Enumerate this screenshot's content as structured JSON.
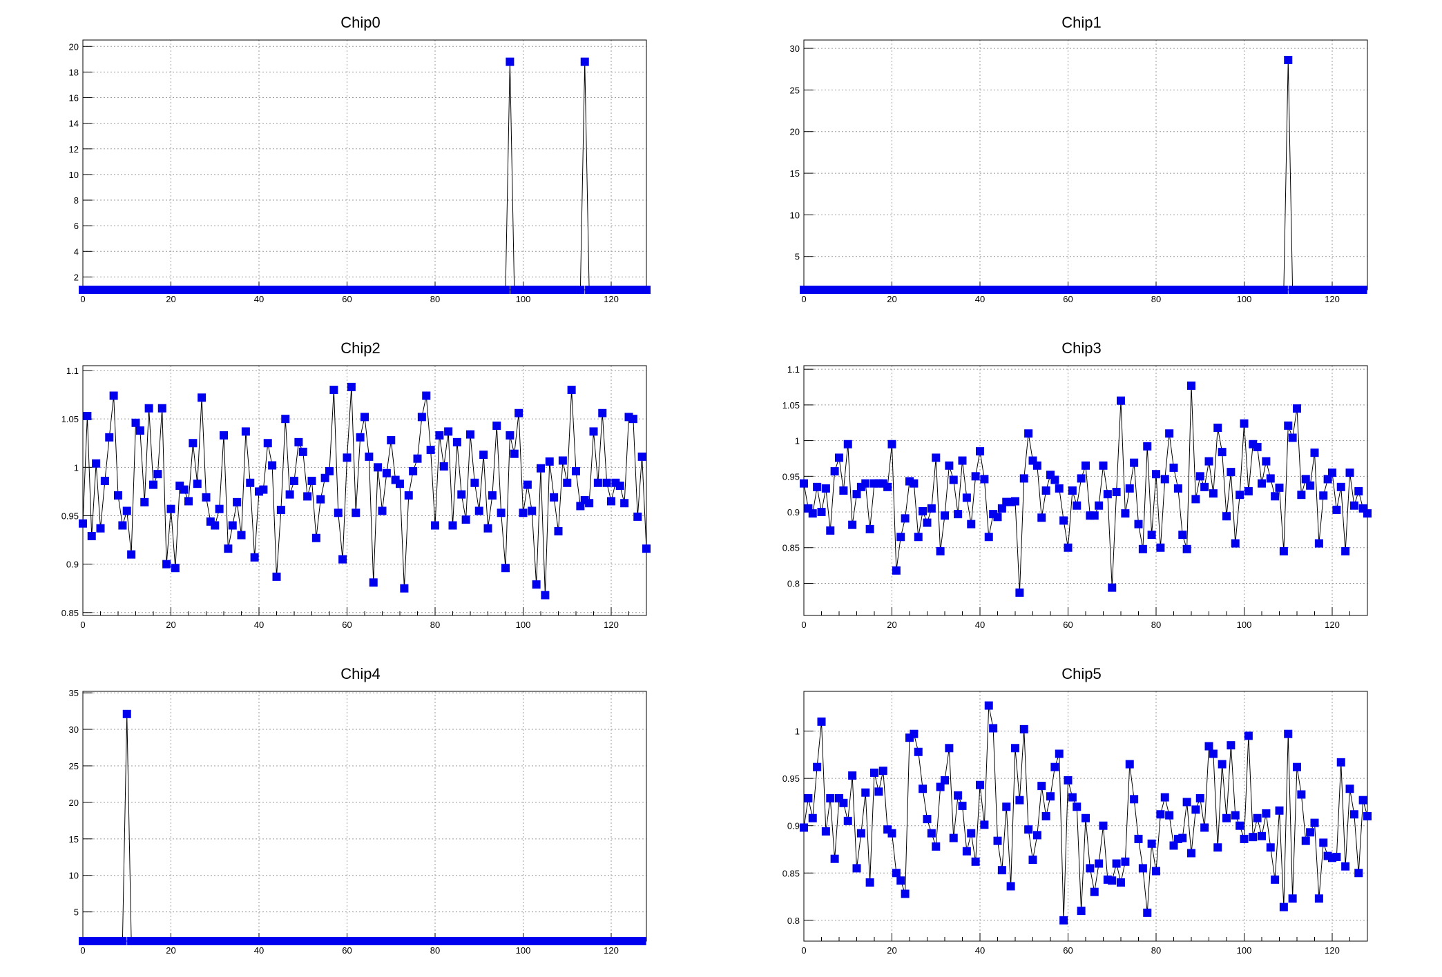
{
  "chart_data": [
    {
      "type": "line",
      "title": "Chip0",
      "xlim": [
        0,
        128
      ],
      "ylim": [
        1,
        20.5
      ],
      "x_ticks": [
        0,
        20,
        40,
        60,
        80,
        100,
        120
      ],
      "y_ticks": [
        2,
        4,
        6,
        8,
        10,
        12,
        14,
        16,
        18,
        20
      ],
      "grid": true,
      "marker": "square",
      "series": [
        {
          "values": [
            1,
            1,
            1,
            1,
            1,
            1,
            1,
            1,
            1,
            1,
            1,
            1,
            1,
            1,
            1,
            1,
            1,
            1,
            1,
            1,
            1,
            1,
            1,
            1,
            1,
            1,
            1,
            1,
            1,
            1,
            1,
            1,
            1,
            1,
            1,
            1,
            1,
            1,
            1,
            1,
            1,
            1,
            1,
            1,
            1,
            1,
            1,
            1,
            1,
            1,
            1,
            1,
            1,
            1,
            1,
            1,
            1,
            1,
            1,
            1,
            1,
            1,
            1,
            1,
            1,
            1,
            1,
            1,
            1,
            1,
            1,
            1,
            1,
            1,
            1,
            1,
            1,
            1,
            1,
            1,
            1,
            1,
            1,
            1,
            1,
            1,
            1,
            1,
            1,
            1,
            1,
            1,
            1,
            1,
            1,
            1,
            1,
            18.8,
            1,
            1,
            1,
            1,
            1,
            1,
            1,
            1,
            1,
            1,
            1,
            1,
            1,
            1,
            1,
            1,
            18.8,
            1,
            1,
            1,
            1,
            1,
            1,
            1,
            1,
            1,
            1,
            1,
            1,
            1,
            1
          ]
        }
      ]
    },
    {
      "type": "line",
      "title": "Chip1",
      "xlim": [
        0,
        128
      ],
      "ylim": [
        1,
        31
      ],
      "x_ticks": [
        0,
        20,
        40,
        60,
        80,
        100,
        120
      ],
      "y_ticks": [
        5,
        10,
        15,
        20,
        25,
        30
      ],
      "grid": true,
      "marker": "square",
      "series": [
        {
          "values": [
            1,
            1,
            1,
            1,
            1,
            1,
            1,
            1,
            1,
            1,
            1,
            1,
            1,
            1,
            1,
            1,
            1,
            1,
            1,
            1,
            1,
            1,
            1,
            1,
            1,
            1,
            1,
            1,
            1,
            1,
            1,
            1,
            1,
            1,
            1,
            1,
            1,
            1,
            1,
            1,
            1,
            1,
            1,
            1,
            1,
            1,
            1,
            1,
            1,
            1,
            1,
            1,
            1,
            1,
            1,
            1,
            1,
            1,
            1,
            1,
            1,
            1,
            1,
            1,
            1,
            1,
            1,
            1,
            1,
            1,
            1,
            1,
            1,
            1,
            1,
            1,
            1,
            1,
            1,
            1,
            1,
            1,
            1,
            1,
            1,
            1,
            1,
            1,
            1,
            1,
            1,
            1,
            1,
            1,
            1,
            1,
            1,
            1,
            1,
            1,
            1,
            1,
            1,
            1,
            1,
            1,
            1,
            1,
            1,
            1,
            28.6,
            1,
            1,
            1,
            1,
            1,
            1,
            1,
            1,
            1,
            1,
            1,
            1,
            1,
            1,
            1,
            1,
            1
          ]
        }
      ]
    },
    {
      "type": "line",
      "title": "Chip2",
      "xlim": [
        0,
        128
      ],
      "ylim": [
        0.847,
        1.105
      ],
      "x_ticks": [
        0,
        20,
        40,
        60,
        80,
        100,
        120
      ],
      "y_ticks": [
        0.85,
        0.9,
        0.95,
        1,
        1.05,
        1.1
      ],
      "grid": true,
      "marker": "square",
      "series": [
        {
          "values": [
            0.942,
            1.053,
            0.929,
            1.004,
            0.937,
            0.986,
            1.031,
            1.074,
            0.971,
            0.94,
            0.955,
            0.91,
            1.046,
            1.038,
            0.964,
            1.061,
            0.982,
            0.993,
            1.061,
            0.9,
            0.957,
            0.896,
            0.981,
            0.977,
            0.965,
            1.025,
            0.983,
            1.072,
            0.969,
            0.944,
            0.94,
            0.957,
            1.033,
            0.916,
            0.94,
            0.964,
            0.93,
            1.037,
            0.984,
            0.907,
            0.975,
            0.977,
            1.025,
            1.002,
            0.887,
            0.956,
            1.05,
            0.972,
            0.986,
            1.026,
            1.016,
            0.97,
            0.986,
            0.927,
            0.967,
            0.989,
            0.996,
            1.08,
            0.953,
            0.905,
            1.01,
            1.083,
            0.953,
            1.031,
            1.052,
            1.011,
            0.881,
            1,
            0.955,
            0.994,
            1.028,
            0.987,
            0.983,
            0.875,
            0.971,
            0.996,
            1.009,
            1.052,
            1.074,
            1.018,
            0.94,
            1.033,
            1.001,
            1.037,
            0.94,
            1.026,
            0.972,
            0.946,
            1.034,
            0.984,
            0.955,
            1.013,
            0.937,
            0.971,
            1.043,
            0.953,
            0.896,
            1.033,
            1.014,
            1.056,
            0.953,
            0.982,
            0.955,
            0.879,
            0.999,
            0.868,
            1.006,
            0.969,
            0.934,
            1.007,
            0.984,
            1.08,
            0.996,
            0.96,
            0.966,
            0.963,
            1.037,
            0.984,
            1.056,
            0.984,
            0.965,
            0.984,
            0.981,
            0.963,
            1.052,
            1.05,
            0.949,
            1.011,
            0.916
          ]
        }
      ]
    },
    {
      "type": "line",
      "title": "Chip3",
      "xlim": [
        0,
        128
      ],
      "ylim": [
        0.755,
        1.105
      ],
      "x_ticks": [
        0,
        20,
        40,
        60,
        80,
        100,
        120
      ],
      "y_ticks": [
        0.8,
        0.85,
        0.9,
        0.95,
        1,
        1.05,
        1.1
      ],
      "grid": true,
      "marker": "square",
      "series": [
        {
          "values": [
            0.94,
            0.905,
            0.898,
            0.935,
            0.9,
            0.933,
            0.874,
            0.957,
            0.976,
            0.93,
            0.995,
            0.882,
            0.925,
            0.935,
            0.94,
            0.876,
            0.94,
            0.94,
            0.94,
            0.935,
            0.995,
            0.818,
            0.865,
            0.891,
            0.943,
            0.94,
            0.865,
            0.901,
            0.885,
            0.905,
            0.976,
            0.845,
            0.895,
            0.965,
            0.945,
            0.897,
            0.972,
            0.92,
            0.883,
            0.95,
            0.985,
            0.946,
            0.865,
            0.897,
            0.893,
            0.905,
            0.914,
            0.914,
            0.915,
            0.787,
            0.947,
            1.01,
            0.972,
            0.965,
            0.892,
            0.93,
            0.952,
            0.945,
            0.933,
            0.888,
            0.85,
            0.93,
            0.909,
            0.947,
            0.965,
            0.895,
            0.895,
            0.909,
            0.965,
            0.925,
            0.794,
            0.928,
            1.056,
            0.898,
            0.933,
            0.969,
            0.883,
            0.848,
            0.992,
            0.868,
            0.953,
            0.85,
            0.946,
            1.01,
            0.962,
            0.933,
            0.868,
            0.848,
            1.077,
            0.918,
            0.95,
            0.935,
            0.971,
            0.926,
            1.018,
            0.984,
            0.894,
            0.956,
            0.856,
            0.924,
            1.024,
            0.929,
            0.995,
            0.991,
            0.94,
            0.971,
            0.947,
            0.922,
            0.934,
            0.845,
            1.021,
            1.004,
            1.045,
            0.924,
            0.946,
            0.937,
            0.983,
            0.856,
            0.923,
            0.946,
            0.955,
            0.903,
            0.935,
            0.845,
            0.955,
            0.909,
            0.929,
            0.905,
            0.898
          ]
        }
      ]
    },
    {
      "type": "line",
      "title": "Chip4",
      "xlim": [
        0,
        128
      ],
      "ylim": [
        1,
        35.2
      ],
      "x_ticks": [
        0,
        20,
        40,
        60,
        80,
        100,
        120
      ],
      "y_ticks": [
        5,
        10,
        15,
        20,
        25,
        30,
        35
      ],
      "grid": true,
      "marker": "square",
      "series": [
        {
          "values": [
            1,
            1,
            1,
            1,
            1,
            1,
            1,
            1,
            1,
            1,
            32.1,
            1,
            1,
            1,
            1,
            1,
            1,
            1,
            1,
            1,
            1,
            1,
            1,
            1,
            1,
            1,
            1,
            1,
            1,
            1,
            1,
            1,
            1,
            1,
            1,
            1,
            1,
            1,
            1,
            1,
            1,
            1,
            1,
            1,
            1,
            1,
            1,
            1,
            1,
            1,
            1,
            1,
            1,
            1,
            1,
            1,
            1,
            1,
            1,
            1,
            1,
            1,
            1,
            1,
            1,
            1,
            1,
            1,
            1,
            1,
            1,
            1,
            1,
            1,
            1,
            1,
            1,
            1,
            1,
            1,
            1,
            1,
            1,
            1,
            1,
            1,
            1,
            1,
            1,
            1,
            1,
            1,
            1,
            1,
            1,
            1,
            1,
            1,
            1,
            1,
            1,
            1,
            1,
            1,
            1,
            1,
            1,
            1,
            1,
            1,
            1,
            1,
            1,
            1,
            1,
            1,
            1,
            1,
            1,
            1,
            1,
            1,
            1,
            1,
            1,
            1,
            1,
            1
          ]
        }
      ]
    },
    {
      "type": "line",
      "title": "Chip5",
      "xlim": [
        0,
        128
      ],
      "ylim": [
        0.778,
        1.042
      ],
      "x_ticks": [
        0,
        20,
        40,
        60,
        80,
        100,
        120
      ],
      "y_ticks": [
        0.8,
        0.85,
        0.9,
        0.95,
        1
      ],
      "grid": true,
      "marker": "square",
      "series": [
        {
          "values": [
            0.898,
            0.929,
            0.908,
            0.962,
            1.01,
            0.894,
            0.929,
            0.865,
            0.929,
            0.924,
            0.905,
            0.953,
            0.855,
            0.892,
            0.935,
            0.84,
            0.956,
            0.936,
            0.958,
            0.896,
            0.892,
            0.85,
            0.842,
            0.828,
            0.993,
            0.997,
            0.978,
            0.939,
            0.907,
            0.892,
            0.878,
            0.941,
            0.948,
            0.982,
            0.887,
            0.932,
            0.921,
            0.873,
            0.892,
            0.862,
            0.943,
            0.901,
            1.027,
            1.003,
            0.884,
            0.853,
            0.92,
            0.836,
            0.982,
            0.927,
            1.002,
            0.896,
            0.864,
            0.89,
            0.942,
            0.91,
            0.931,
            0.962,
            0.976,
            0.8,
            0.948,
            0.93,
            0.92,
            0.81,
            0.908,
            0.855,
            0.83,
            0.86,
            0.9,
            0.843,
            0.842,
            0.86,
            0.84,
            0.862,
            0.965,
            0.928,
            0.886,
            0.855,
            0.808,
            0.881,
            0.852,
            0.912,
            0.93,
            0.911,
            0.879,
            0.886,
            0.887,
            0.925,
            0.871,
            0.917,
            0.929,
            0.898,
            0.984,
            0.976,
            0.877,
            0.965,
            0.908,
            0.985,
            0.911,
            0.9,
            0.886,
            0.995,
            0.888,
            0.908,
            0.889,
            0.913,
            0.877,
            0.843,
            0.916,
            0.814,
            0.997,
            0.823,
            0.962,
            0.933,
            0.884,
            0.893,
            0.903,
            0.823,
            0.882,
            0.868,
            0.866,
            0.867,
            0.967,
            0.857,
            0.939,
            0.912,
            0.85,
            0.927,
            0.91
          ]
        }
      ]
    }
  ]
}
